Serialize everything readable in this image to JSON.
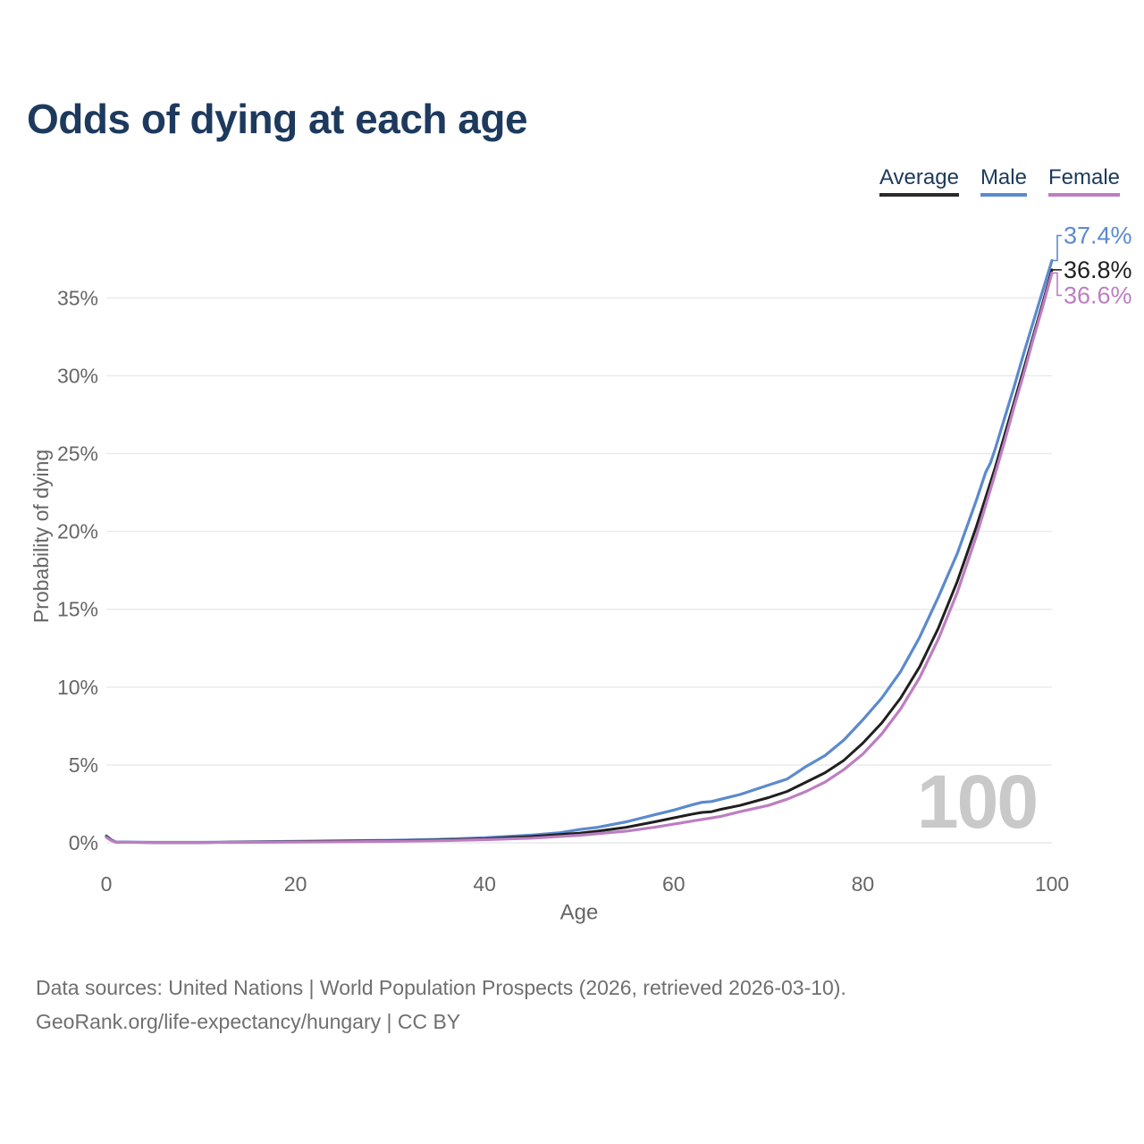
{
  "header": {
    "title": "Odds of dying at each age"
  },
  "legend": {
    "items": [
      {
        "label": "Average",
        "color": "#2b2b2b"
      },
      {
        "label": "Male",
        "color": "#5b8ace"
      },
      {
        "label": "Female",
        "color": "#bd7ec1"
      }
    ]
  },
  "footer": {
    "line1": "Data sources: United Nations | World Population Prospects (2026, retrieved 2026-03-10).",
    "line2": "GeoRank.org/life-expectancy/hungary | CC BY"
  },
  "chart_data": {
    "type": "line",
    "title": "Odds of dying at each age",
    "xlabel": "Age",
    "ylabel": "Probability of dying",
    "xlim": [
      0,
      100
    ],
    "ylim_percent": [
      0,
      37.4
    ],
    "grid": "horizontal",
    "legend_position": "top-right",
    "watermark": "100",
    "xticks": [
      {
        "v": 0,
        "label": "0"
      },
      {
        "v": 20,
        "label": "20"
      },
      {
        "v": 40,
        "label": "40"
      },
      {
        "v": 60,
        "label": "60"
      },
      {
        "v": 80,
        "label": "80"
      },
      {
        "v": 100,
        "label": "100"
      }
    ],
    "yticks": [
      {
        "v": 0,
        "label": "0%"
      },
      {
        "v": 5,
        "label": "5%"
      },
      {
        "v": 10,
        "label": "10%"
      },
      {
        "v": 15,
        "label": "15%"
      },
      {
        "v": 20,
        "label": "20%"
      },
      {
        "v": 25,
        "label": "25%"
      },
      {
        "v": 30,
        "label": "30%"
      },
      {
        "v": 35,
        "label": "35%"
      }
    ],
    "series": [
      {
        "name": "Male",
        "color": "#5b8ace",
        "stroke_width": 3.2,
        "end_label": "37.4%",
        "end_value": 37.4,
        "label_dy": -28,
        "points": [
          [
            0,
            0.45
          ],
          [
            0.5,
            0.2
          ],
          [
            1,
            0.05
          ],
          [
            5,
            0.03
          ],
          [
            10,
            0.03
          ],
          [
            15,
            0.06
          ],
          [
            20,
            0.1
          ],
          [
            25,
            0.13
          ],
          [
            30,
            0.16
          ],
          [
            35,
            0.22
          ],
          [
            40,
            0.32
          ],
          [
            45,
            0.5
          ],
          [
            48,
            0.65
          ],
          [
            50,
            0.85
          ],
          [
            52,
            1.0
          ],
          [
            55,
            1.35
          ],
          [
            58,
            1.8
          ],
          [
            60,
            2.1
          ],
          [
            62,
            2.45
          ],
          [
            63,
            2.6
          ],
          [
            64,
            2.65
          ],
          [
            65,
            2.8
          ],
          [
            67,
            3.1
          ],
          [
            70,
            3.7
          ],
          [
            72,
            4.1
          ],
          [
            74,
            4.9
          ],
          [
            76,
            5.6
          ],
          [
            78,
            6.6
          ],
          [
            80,
            7.9
          ],
          [
            82,
            9.3
          ],
          [
            84,
            11.0
          ],
          [
            86,
            13.2
          ],
          [
            88,
            15.8
          ],
          [
            90,
            18.6
          ],
          [
            91,
            20.3
          ],
          [
            92,
            22.0
          ],
          [
            93,
            23.8
          ],
          [
            93.5,
            24.4
          ],
          [
            94,
            25.3
          ],
          [
            95,
            27.3
          ],
          [
            96,
            29.3
          ],
          [
            97,
            31.4
          ],
          [
            98,
            33.4
          ],
          [
            99,
            35.4
          ],
          [
            100,
            37.4
          ]
        ]
      },
      {
        "name": "Average",
        "color": "#1f1f1f",
        "stroke_width": 3,
        "end_label": "36.8%",
        "end_value": 36.8,
        "label_dy": 0,
        "points": [
          [
            0,
            0.4
          ],
          [
            0.5,
            0.18
          ],
          [
            1,
            0.04
          ],
          [
            5,
            0.02
          ],
          [
            10,
            0.02
          ],
          [
            15,
            0.05
          ],
          [
            20,
            0.08
          ],
          [
            25,
            0.1
          ],
          [
            30,
            0.13
          ],
          [
            35,
            0.17
          ],
          [
            40,
            0.25
          ],
          [
            45,
            0.4
          ],
          [
            50,
            0.62
          ],
          [
            52,
            0.75
          ],
          [
            55,
            1.0
          ],
          [
            58,
            1.35
          ],
          [
            60,
            1.6
          ],
          [
            62,
            1.85
          ],
          [
            63,
            1.95
          ],
          [
            64,
            2.0
          ],
          [
            65,
            2.15
          ],
          [
            67,
            2.4
          ],
          [
            70,
            2.9
          ],
          [
            72,
            3.3
          ],
          [
            74,
            3.9
          ],
          [
            76,
            4.5
          ],
          [
            78,
            5.3
          ],
          [
            80,
            6.4
          ],
          [
            82,
            7.7
          ],
          [
            84,
            9.3
          ],
          [
            86,
            11.3
          ],
          [
            88,
            13.8
          ],
          [
            90,
            16.8
          ],
          [
            92,
            20.3
          ],
          [
            94,
            24.1
          ],
          [
            95,
            26.2
          ],
          [
            96,
            28.3
          ],
          [
            97,
            30.4
          ],
          [
            98,
            32.5
          ],
          [
            99,
            34.6
          ],
          [
            100,
            36.8
          ]
        ]
      },
      {
        "name": "Female",
        "color": "#bd7ec1",
        "stroke_width": 3.2,
        "end_label": "36.6%",
        "end_value": 36.6,
        "label_dy": 25,
        "points": [
          [
            0,
            0.35
          ],
          [
            0.5,
            0.15
          ],
          [
            1,
            0.04
          ],
          [
            5,
            0.02
          ],
          [
            10,
            0.02
          ],
          [
            15,
            0.03
          ],
          [
            20,
            0.05
          ],
          [
            25,
            0.07
          ],
          [
            30,
            0.09
          ],
          [
            35,
            0.13
          ],
          [
            40,
            0.2
          ],
          [
            45,
            0.3
          ],
          [
            50,
            0.48
          ],
          [
            55,
            0.75
          ],
          [
            58,
            1.0
          ],
          [
            60,
            1.2
          ],
          [
            62,
            1.4
          ],
          [
            65,
            1.7
          ],
          [
            67,
            2.0
          ],
          [
            70,
            2.4
          ],
          [
            72,
            2.8
          ],
          [
            74,
            3.3
          ],
          [
            76,
            3.9
          ],
          [
            78,
            4.7
          ],
          [
            80,
            5.7
          ],
          [
            82,
            7.0
          ],
          [
            84,
            8.6
          ],
          [
            86,
            10.6
          ],
          [
            88,
            13.1
          ],
          [
            90,
            16.1
          ],
          [
            92,
            19.7
          ],
          [
            94,
            23.7
          ],
          [
            95,
            25.8
          ],
          [
            96,
            28.0
          ],
          [
            97,
            30.1
          ],
          [
            98,
            32.3
          ],
          [
            99,
            34.4
          ],
          [
            100,
            36.6
          ]
        ]
      }
    ],
    "colors": {
      "grid": "#e9e9ec",
      "tick_text": "#666666",
      "axis_title": "#666666",
      "watermark": "#c9c9c9",
      "title_text": "#1d3a5e",
      "footer_text": "#6f6f6f"
    }
  }
}
